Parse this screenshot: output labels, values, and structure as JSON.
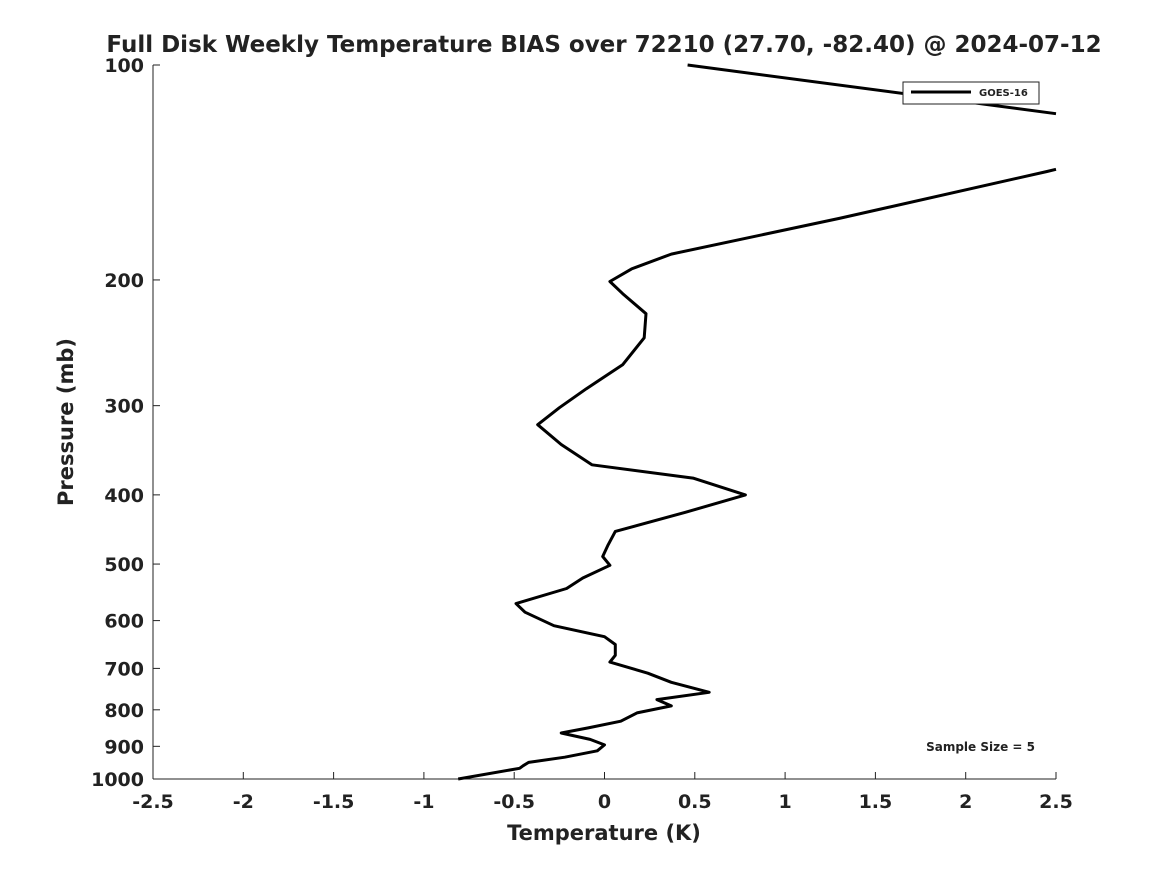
{
  "chart_data": {
    "type": "line",
    "title": "Full Disk Weekly Temperature BIAS over 72210 (27.70, -82.40) @ 2024-07-12",
    "xlabel": "Temperature (K)",
    "ylabel": "Pressure (mb)",
    "xlim": [
      -2.5,
      2.5
    ],
    "ylim": [
      100,
      1000
    ],
    "y_scale": "log",
    "y_reversed": true,
    "x_ticks": [
      "-2.5",
      "-2",
      "-1.5",
      "-1",
      "-0.5",
      "0",
      "0.5",
      "1",
      "1.5",
      "2",
      "2.5"
    ],
    "y_ticks": [
      "100",
      "200",
      "300",
      "400",
      "500",
      "600",
      "700",
      "800",
      "900",
      "1000"
    ],
    "grid": false,
    "legend_position": "top-right",
    "annotation": "Sample Size = 5",
    "series": [
      {
        "name": "GOES-16",
        "color": "#000000",
        "segments": [
          [
            {
              "x": 0.46,
              "p": 100
            },
            {
              "x": 2.5,
              "p": 117
            }
          ],
          [
            {
              "x": 2.5,
              "p": 140
            },
            {
              "x": 2.45,
              "p": 141
            },
            {
              "x": 1.3,
              "p": 164
            },
            {
              "x": 0.37,
              "p": 184
            },
            {
              "x": 0.15,
              "p": 193
            },
            {
              "x": 0.03,
              "p": 201
            },
            {
              "x": 0.1,
              "p": 209
            },
            {
              "x": 0.23,
              "p": 223
            },
            {
              "x": 0.22,
              "p": 241
            },
            {
              "x": 0.1,
              "p": 263
            },
            {
              "x": -0.1,
              "p": 284
            },
            {
              "x": -0.25,
              "p": 302
            },
            {
              "x": -0.37,
              "p": 319
            },
            {
              "x": -0.24,
              "p": 340
            },
            {
              "x": -0.07,
              "p": 363
            },
            {
              "x": 0.49,
              "p": 379
            },
            {
              "x": 0.78,
              "p": 400
            },
            {
              "x": 0.45,
              "p": 423
            },
            {
              "x": 0.06,
              "p": 450
            },
            {
              "x": 0.02,
              "p": 470
            },
            {
              "x": -0.01,
              "p": 488
            },
            {
              "x": 0.03,
              "p": 502
            },
            {
              "x": -0.12,
              "p": 523
            },
            {
              "x": -0.21,
              "p": 541
            },
            {
              "x": -0.49,
              "p": 568
            },
            {
              "x": -0.44,
              "p": 584
            },
            {
              "x": -0.28,
              "p": 610
            },
            {
              "x": 0.0,
              "p": 632
            },
            {
              "x": 0.06,
              "p": 648
            },
            {
              "x": 0.06,
              "p": 671
            },
            {
              "x": 0.03,
              "p": 686
            },
            {
              "x": 0.24,
              "p": 711
            },
            {
              "x": 0.37,
              "p": 732
            },
            {
              "x": 0.58,
              "p": 756
            },
            {
              "x": 0.29,
              "p": 774
            },
            {
              "x": 0.37,
              "p": 790
            },
            {
              "x": 0.18,
              "p": 808
            },
            {
              "x": 0.09,
              "p": 830
            },
            {
              "x": -0.09,
              "p": 848
            },
            {
              "x": -0.24,
              "p": 862
            },
            {
              "x": -0.08,
              "p": 880
            },
            {
              "x": 0.0,
              "p": 896
            },
            {
              "x": -0.04,
              "p": 913
            },
            {
              "x": -0.22,
              "p": 932
            },
            {
              "x": -0.42,
              "p": 948
            },
            {
              "x": -0.45,
              "p": 958
            },
            {
              "x": -0.47,
              "p": 966
            },
            {
              "x": -0.81,
              "p": 1000
            }
          ]
        ]
      }
    ]
  }
}
